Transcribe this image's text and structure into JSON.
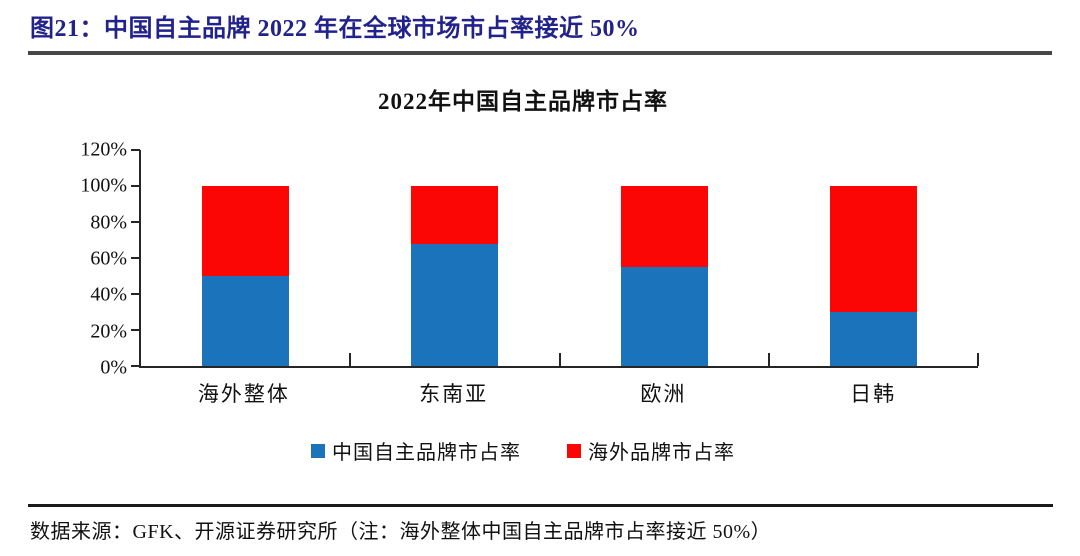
{
  "header": {
    "title": "图21：中国自主品牌 2022 年在全球市场市占率接近 50%"
  },
  "chart_data": {
    "type": "bar",
    "stacked": true,
    "title": "2022年中国自主品牌市占率",
    "categories": [
      "海外整体",
      "东南亚",
      "欧洲",
      "日韩"
    ],
    "series": [
      {
        "name": "中国自主品牌市占率",
        "color": "#1B74BB",
        "values": [
          50,
          68,
          55,
          30
        ]
      },
      {
        "name": "海外品牌市占率",
        "color": "#FB0505",
        "values": [
          50,
          32,
          45,
          70
        ]
      }
    ],
    "unit": "%",
    "ylim": [
      0,
      120
    ],
    "ytick_step": 20,
    "ytick_labels": [
      "0%",
      "20%",
      "40%",
      "60%",
      "80%",
      "100%",
      "120%"
    ],
    "grid": false,
    "legend_position": "bottom"
  },
  "footer": {
    "source": "数据来源：GFK、开源证券研究所（注：海外整体中国自主品牌市占率接近 50%）"
  },
  "colors": {
    "header_text": "#22228C",
    "header_rule": "#474747",
    "footer_rule": "#1A1A1A",
    "axis": "#262626",
    "bar_blue": "#1B74BB",
    "bar_red": "#FB0505"
  }
}
